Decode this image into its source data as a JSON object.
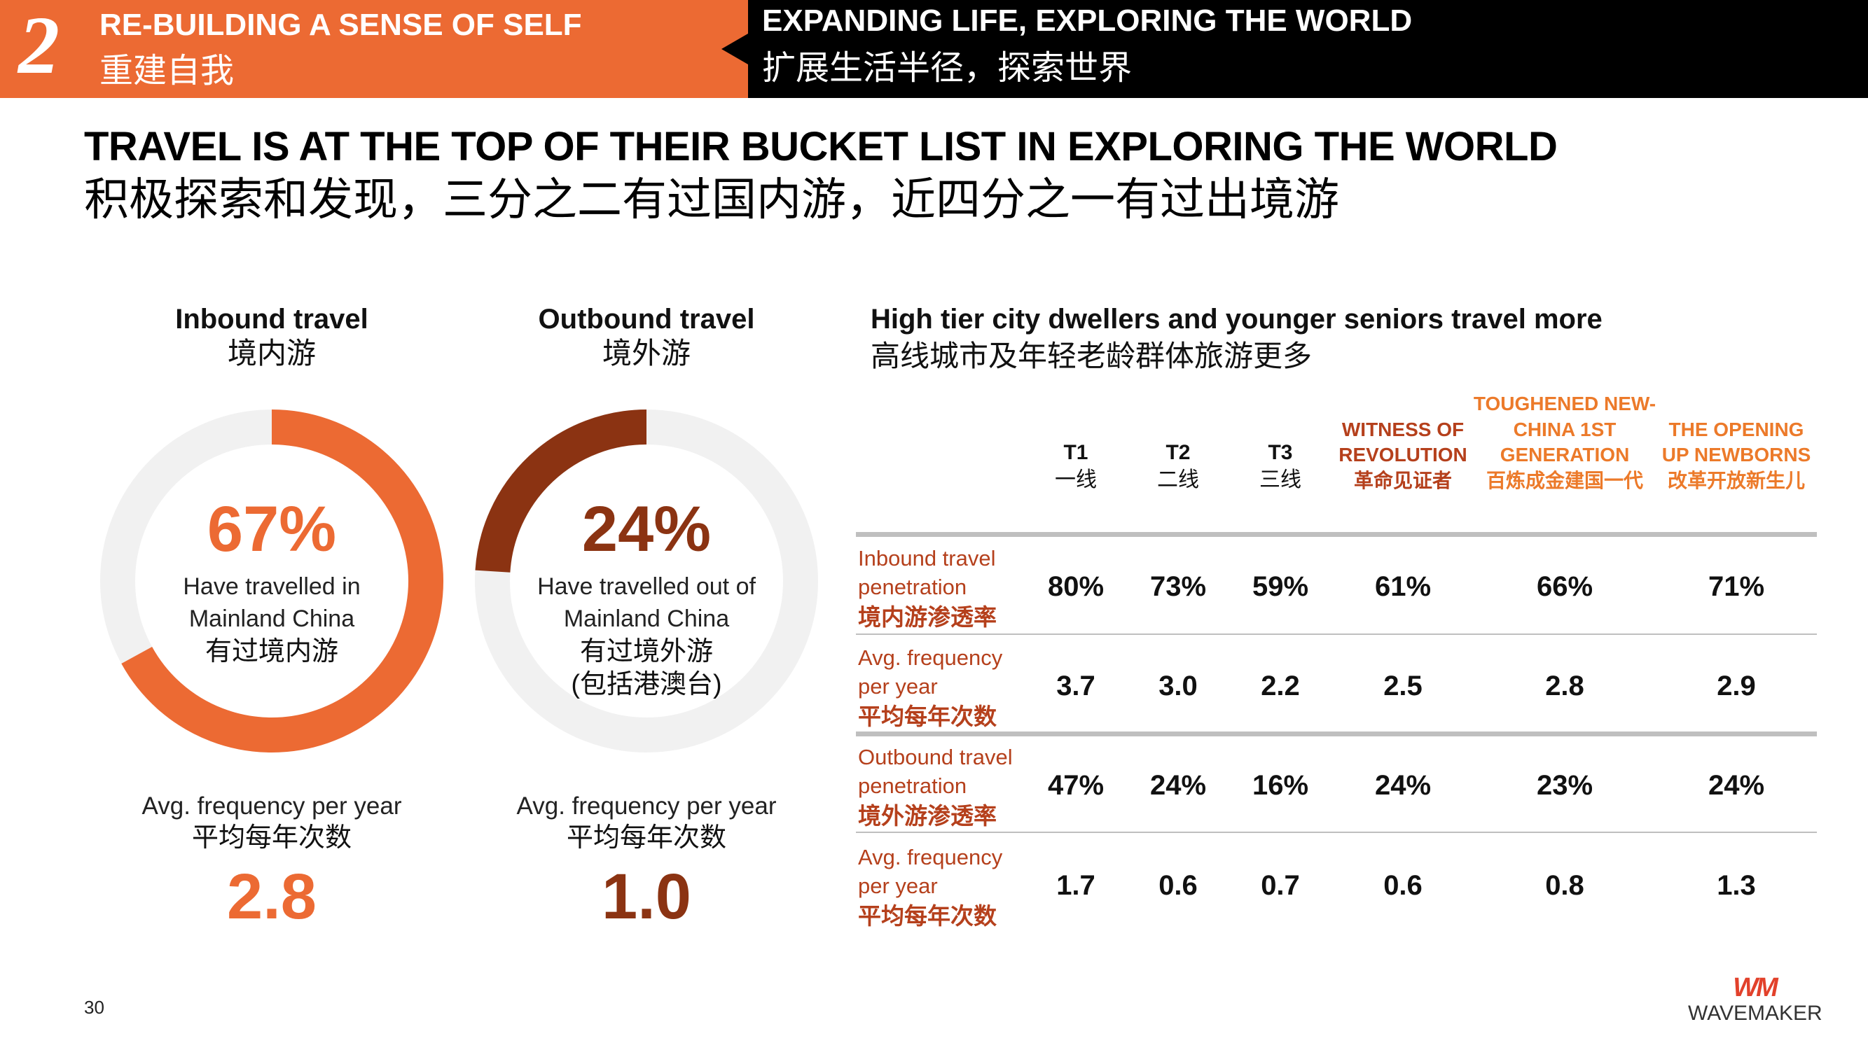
{
  "header": {
    "section_number": "2",
    "left_en": "RE-BUILDING A SENSE OF SELF",
    "left_zh": "重建自我",
    "right_en": "EXPANDING LIFE, EXPLORING THE WORLD",
    "right_zh": "扩展生活半径，探索世界"
  },
  "title": {
    "en": "TRAVEL IS AT THE TOP OF THEIR BUCKET LIST IN EXPLORING THE WORLD",
    "zh": "积极探索和发现，三分之二有过国内游，近四分之一有过出境游"
  },
  "colors": {
    "orange": "#ec6a33",
    "brown": "#8b3312",
    "track": "#f1f1f1",
    "label_red": "#b5401c",
    "generation_orange": "#ec7a2a"
  },
  "chart_data": [
    {
      "type": "pie",
      "title": "Inbound travel",
      "title_zh": "境内游",
      "value": 67,
      "value_label": "67%",
      "label_en_1": "Have travelled in",
      "label_en_2": "Mainland China",
      "label_zh_1": "有过境内游",
      "label_zh_2": "",
      "freq_label_en": "Avg. frequency per year",
      "freq_label_zh": "平均每年次数",
      "freq_value": "2.8",
      "color": "#ec6a33"
    },
    {
      "type": "pie",
      "title": "Outbound travel",
      "title_zh": "境外游",
      "value": 24,
      "value_label": "24%",
      "label_en_1": "Have travelled out of",
      "label_en_2": "Mainland China",
      "label_zh_1": "有过境外游",
      "label_zh_2": "(包括港澳台)",
      "freq_label_en": "Avg. frequency per year",
      "freq_label_zh": "平均每年次数",
      "freq_value": "1.0",
      "color": "#8b3312"
    },
    {
      "type": "table",
      "title_en": "High tier city dwellers and younger seniors travel more",
      "title_zh": "高线城市及年轻老龄群体旅游更多",
      "columns": [
        {
          "lines": [
            "T1"
          ],
          "zh": "一线"
        },
        {
          "lines": [
            "T2"
          ],
          "zh": "二线"
        },
        {
          "lines": [
            "T3"
          ],
          "zh": "三线"
        },
        {
          "lines": [
            "WITNESS OF",
            "REVOLUTION"
          ],
          "zh": "革命见证者"
        },
        {
          "lines": [
            "TOUGHENED NEW-",
            "CHINA 1ST",
            "GENERATION"
          ],
          "zh": "百炼成金建国一代"
        },
        {
          "lines": [
            "THE OPENING",
            "UP NEWBORNS"
          ],
          "zh": "改革开放新生儿"
        }
      ],
      "rows": [
        {
          "label_1": "Inbound travel",
          "label_2": "penetration",
          "label_zh": "境内游渗透率",
          "values": [
            "80%",
            "73%",
            "59%",
            "61%",
            "66%",
            "71%"
          ]
        },
        {
          "label_1": "Avg. frequency",
          "label_2": "per year",
          "label_zh": "平均每年次数",
          "values": [
            "3.7",
            "3.0",
            "2.2",
            "2.5",
            "2.8",
            "2.9"
          ]
        },
        {
          "label_1": "Outbound travel",
          "label_2": "penetration",
          "label_zh": "境外游渗透率",
          "values": [
            "47%",
            "24%",
            "16%",
            "24%",
            "23%",
            "24%"
          ]
        },
        {
          "label_1": "Avg. frequency",
          "label_2": "per year",
          "label_zh": "平均每年次数",
          "values": [
            "1.7",
            "0.6",
            "0.7",
            "0.6",
            "0.8",
            "1.3"
          ]
        }
      ]
    }
  ],
  "footer": {
    "page_number": "30",
    "logo_mark": "WM",
    "logo_text": "WAVEMAKER"
  }
}
